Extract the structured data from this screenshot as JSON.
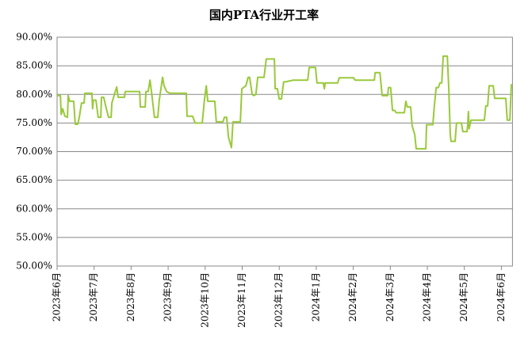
{
  "chart_data": {
    "type": "line",
    "title": "国内PTA行业开工率",
    "color": "#99c93a",
    "grid": true,
    "xlim": [
      0,
      12.3
    ],
    "xticks": [
      {
        "value": 0,
        "label": "2023年6月"
      },
      {
        "value": 1,
        "label": "2023年7月"
      },
      {
        "value": 2,
        "label": "2023年8月"
      },
      {
        "value": 3,
        "label": "2023年9月"
      },
      {
        "value": 4,
        "label": "2023年10月"
      },
      {
        "value": 5,
        "label": "2023年11月"
      },
      {
        "value": 6,
        "label": "2023年12月"
      },
      {
        "value": 7,
        "label": "2024年1月"
      },
      {
        "value": 8,
        "label": "2024年2月"
      },
      {
        "value": 9,
        "label": "2024年3月"
      },
      {
        "value": 10,
        "label": "2024年4月"
      },
      {
        "value": 11,
        "label": "2024年5月"
      },
      {
        "value": 12,
        "label": "2024年6月"
      }
    ],
    "ylim": [
      50,
      90
    ],
    "yticks": [
      {
        "value": 50,
        "label": "50.00%"
      },
      {
        "value": 55,
        "label": "55.00%"
      },
      {
        "value": 60,
        "label": "60.00%"
      },
      {
        "value": 65,
        "label": "65.00%"
      },
      {
        "value": 70,
        "label": "70.00%"
      },
      {
        "value": 75,
        "label": "75.00%"
      },
      {
        "value": 80,
        "label": "80.00%"
      },
      {
        "value": 85,
        "label": "85.00%"
      },
      {
        "value": 90,
        "label": "90.00%"
      }
    ],
    "x": [
      0,
      0.09,
      0.11,
      0.15,
      0.21,
      0.28,
      0.3,
      0.34,
      0.45,
      0.49,
      0.56,
      0.6,
      0.66,
      0.73,
      0.75,
      0.81,
      0.94,
      0.96,
      0.98,
      1.05,
      1.11,
      1.18,
      1.2,
      1.26,
      1.33,
      1.39,
      1.46,
      1.48,
      1.61,
      1.65,
      1.82,
      1.84,
      1.97,
      2.06,
      2.23,
      2.25,
      2.38,
      2.4,
      2.46,
      2.51,
      2.55,
      2.63,
      2.72,
      2.76,
      2.85,
      2.89,
      2.96,
      3.04,
      3.49,
      3.51,
      3.66,
      3.73,
      3.92,
      3.98,
      4.03,
      4.07,
      4.26,
      4.3,
      4.48,
      4.52,
      4.58,
      4.63,
      4.71,
      4.75,
      4.95,
      4.99,
      5.1,
      5.16,
      5.2,
      5.27,
      5.31,
      5.37,
      5.42,
      5.59,
      5.65,
      5.87,
      5.89,
      5.95,
      6.0,
      6.06,
      6.12,
      6.17,
      6.38,
      6.77,
      6.81,
      6.98,
      7.02,
      7.19,
      7.22,
      7.24,
      7.58,
      7.62,
      8.01,
      8.05,
      8.57,
      8.59,
      8.72,
      8.78,
      8.93,
      8.95,
      9.01,
      9.06,
      9.12,
      9.16,
      9.38,
      9.42,
      9.46,
      9.55,
      9.59,
      9.66,
      9.7,
      9.96,
      9.98,
      10.15,
      10.19,
      10.24,
      10.3,
      10.34,
      10.39,
      10.43,
      10.54,
      10.58,
      10.62,
      10.64,
      10.75,
      10.79,
      10.92,
      10.96,
      11.07,
      11.09,
      11.11,
      11.13,
      11.18,
      11.54,
      11.58,
      11.63,
      11.67,
      11.78,
      11.82,
      12.12,
      12.16,
      12.23,
      12.27
    ],
    "values": [
      79.8,
      79.8,
      76.5,
      77.5,
      76.2,
      76.0,
      79.8,
      78.8,
      78.8,
      74.8,
      74.8,
      76,
      78.5,
      78.5,
      80.2,
      80.2,
      80.2,
      77.5,
      79,
      79,
      76,
      76,
      79.5,
      79.5,
      77.5,
      76.0,
      76.0,
      78.5,
      81.3,
      79.5,
      79.5,
      80.5,
      80.5,
      80.5,
      80.5,
      77.8,
      77.8,
      80.5,
      80.5,
      82.5,
      80.5,
      76,
      76,
      79,
      83,
      81.5,
      80.5,
      80.2,
      80.2,
      76.2,
      76.2,
      75,
      75,
      79,
      81.5,
      78.8,
      78.8,
      75.2,
      75.2,
      76,
      76,
      72.5,
      70.7,
      75.2,
      75.2,
      81,
      81.5,
      83,
      83,
      80,
      79.8,
      80,
      83,
      83,
      86.2,
      86.2,
      81,
      81,
      79.2,
      79.2,
      82.2,
      82.2,
      82.5,
      82.5,
      84.7,
      84.7,
      82,
      82,
      81,
      82,
      82,
      82.9,
      82.9,
      82.5,
      82.5,
      83.8,
      83.8,
      79.8,
      79.8,
      81.2,
      81.2,
      77.2,
      77.2,
      76.8,
      76.8,
      78.8,
      77.8,
      77.8,
      74.5,
      73,
      70.5,
      70.5,
      74.7,
      74.7,
      78,
      81.2,
      81.2,
      82,
      82,
      86.7,
      86.7,
      81,
      73,
      71.8,
      71.8,
      75,
      75,
      73.5,
      73.5,
      74.5,
      77,
      74,
      75.5,
      75.5,
      78,
      78,
      81.5,
      81.5,
      79.3,
      79.3,
      75.5,
      75.5,
      81.8
    ]
  }
}
